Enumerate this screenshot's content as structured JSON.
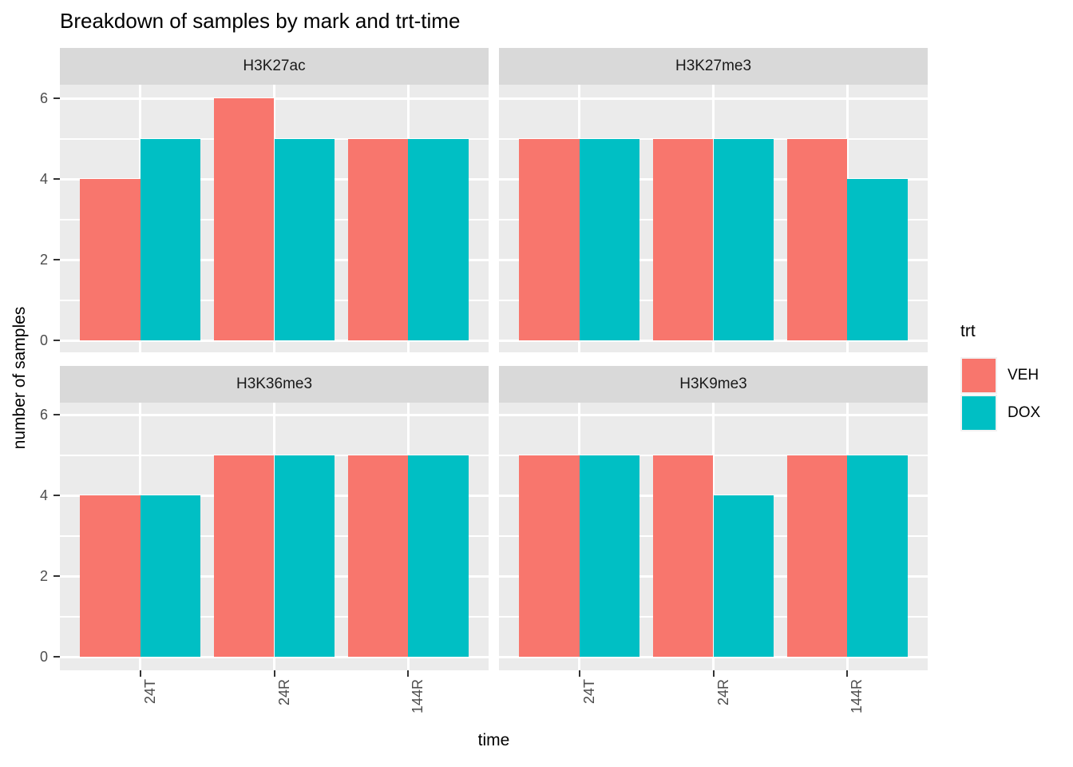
{
  "title": "Breakdown of samples by mark and trt-time",
  "axes": {
    "x_title": "time",
    "y_title": "number of samples",
    "y_ticks": [
      0,
      2,
      4,
      6
    ],
    "y_minor_ticks": [
      1,
      3,
      5
    ],
    "x_categories": [
      "24T",
      "24R",
      "144R"
    ]
  },
  "legend": {
    "title": "trt",
    "entries": [
      {
        "label": "VEH",
        "color": "#F8766D"
      },
      {
        "label": "DOX",
        "color": "#00BFC4"
      }
    ]
  },
  "theme": {
    "panel_bg": "#EBEBEB",
    "strip_bg": "#D9D9D9",
    "grid_color": "#FFFFFF",
    "tick_label_color": "#4D4D4D",
    "strip_text_color": "#1A1A1A",
    "tick_color": "#333333",
    "background": "#FFFFFF"
  },
  "chart_data": {
    "type": "bar",
    "bar_mode": "dodge",
    "title": "Breakdown of samples by mark and trt-time",
    "xlabel": "time",
    "ylabel": "number of samples",
    "ylim": [
      0,
      6.3
    ],
    "grid": true,
    "legend_position": "right",
    "facet_layout": "2x2",
    "categories": [
      "24T",
      "24R",
      "144R"
    ],
    "facets": [
      {
        "name": "H3K27ac",
        "series": [
          {
            "name": "VEH",
            "values": [
              4,
              6,
              5
            ]
          },
          {
            "name": "DOX",
            "values": [
              5,
              5,
              5
            ]
          }
        ]
      },
      {
        "name": "H3K27me3",
        "series": [
          {
            "name": "VEH",
            "values": [
              5,
              5,
              5
            ]
          },
          {
            "name": "DOX",
            "values": [
              5,
              5,
              4
            ]
          }
        ]
      },
      {
        "name": "H3K36me3",
        "series": [
          {
            "name": "VEH",
            "values": [
              4,
              5,
              5
            ]
          },
          {
            "name": "DOX",
            "values": [
              4,
              5,
              5
            ]
          }
        ]
      },
      {
        "name": "H3K9me3",
        "series": [
          {
            "name": "VEH",
            "values": [
              5,
              5,
              5
            ]
          },
          {
            "name": "DOX",
            "values": [
              5,
              4,
              5
            ]
          }
        ]
      }
    ]
  }
}
